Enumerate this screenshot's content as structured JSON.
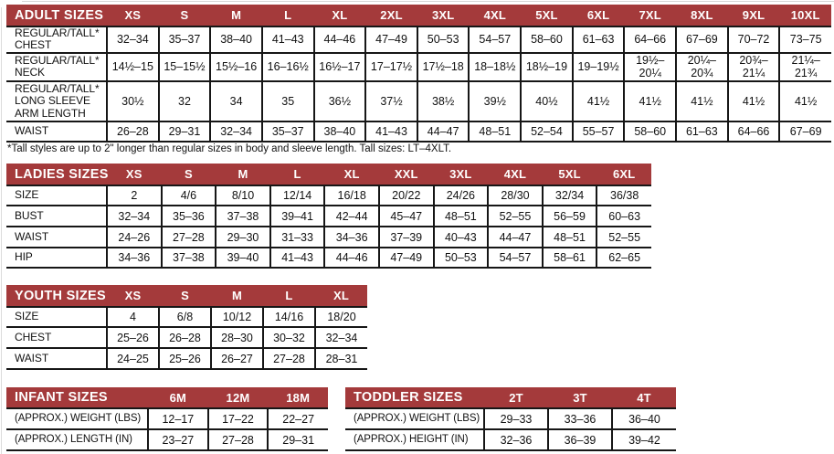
{
  "colors": {
    "header_bg": "#A43A3B",
    "header_text": "#FFFFFF",
    "border": "#161616",
    "background": "#FFFFFF"
  },
  "footnote": "*Tall styles are up to 2\" longer than regular sizes in body and sleeve length. Tall sizes: LT–4XLT.",
  "tables": {
    "adult": {
      "title": "ADULT SIZES",
      "columns": [
        "XS",
        "S",
        "M",
        "L",
        "XL",
        "2XL",
        "3XL",
        "4XL",
        "5XL",
        "6XL",
        "7XL",
        "8XL",
        "9XL",
        "10XL"
      ],
      "rows": [
        {
          "label": "REGULAR/TALL*\nCHEST",
          "values": [
            "32–34",
            "35–37",
            "38–40",
            "41–43",
            "44–46",
            "47–49",
            "50–53",
            "54–57",
            "58–60",
            "61–63",
            "64–66",
            "67–69",
            "70–72",
            "73–75"
          ]
        },
        {
          "label": "REGULAR/TALL*\nNECK",
          "values": [
            "14½–15",
            "15–15½",
            "15½–16",
            "16–16½",
            "16½–17",
            "17–17½",
            "17½–18",
            "18–18½",
            "18½–19",
            "19–19½",
            "19½–\n20¼",
            "20¼–\n20¾",
            "20¾–\n21¼",
            "21¼–\n21¾"
          ]
        },
        {
          "label": "REGULAR/TALL*\nLONG SLEEVE\nARM LENGTH",
          "values": [
            "30½",
            "32",
            "34",
            "35",
            "36½",
            "37½",
            "38½",
            "39½",
            "40½",
            "41½",
            "41½",
            "41½",
            "41½",
            "41½"
          ]
        },
        {
          "label": "WAIST",
          "values": [
            "26–28",
            "29–31",
            "32–34",
            "35–37",
            "38–40",
            "41–43",
            "44–47",
            "48–51",
            "52–54",
            "55–57",
            "58–60",
            "61–63",
            "64–66",
            "67–69"
          ]
        }
      ]
    },
    "ladies": {
      "title": "LADIES SIZES",
      "columns": [
        "XS",
        "S",
        "M",
        "L",
        "XL",
        "XXL",
        "3XL",
        "4XL",
        "5XL",
        "6XL"
      ],
      "rows": [
        {
          "label": "SIZE",
          "values": [
            "2",
            "4/6",
            "8/10",
            "12/14",
            "16/18",
            "20/22",
            "24/26",
            "28/30",
            "32/34",
            "36/38"
          ]
        },
        {
          "label": "BUST",
          "values": [
            "32–34",
            "35–36",
            "37–38",
            "39–41",
            "42–44",
            "45–47",
            "48–51",
            "52–55",
            "56–59",
            "60–63"
          ]
        },
        {
          "label": "WAIST",
          "values": [
            "24–26",
            "27–28",
            "29–30",
            "31–33",
            "34–36",
            "37–39",
            "40–43",
            "44–47",
            "48–51",
            "52–55"
          ]
        },
        {
          "label": "HIP",
          "values": [
            "34–36",
            "37–38",
            "39–40",
            "41–43",
            "44–46",
            "47–49",
            "50–53",
            "54–57",
            "58–61",
            "62–65"
          ]
        }
      ]
    },
    "youth": {
      "title": "YOUTH SIZES",
      "columns": [
        "XS",
        "S",
        "M",
        "L",
        "XL"
      ],
      "rows": [
        {
          "label": "SIZE",
          "values": [
            "4",
            "6/8",
            "10/12",
            "14/16",
            "18/20"
          ]
        },
        {
          "label": "CHEST",
          "values": [
            "25–26",
            "26–28",
            "28–30",
            "30–32",
            "32–34"
          ]
        },
        {
          "label": "WAIST",
          "values": [
            "24–25",
            "25–26",
            "26–27",
            "27–28",
            "28–31"
          ]
        }
      ]
    },
    "infant": {
      "title": "INFANT SIZES",
      "columns": [
        "6M",
        "12M",
        "18M"
      ],
      "rows": [
        {
          "label": "(APPROX.) WEIGHT (LBS)",
          "values": [
            "12–17",
            "17–22",
            "22–27"
          ]
        },
        {
          "label": "(APPROX.) LENGTH (IN)",
          "values": [
            "23–27",
            "27–28",
            "29–31"
          ]
        }
      ]
    },
    "toddler": {
      "title": "TODDLER SIZES",
      "columns": [
        "2T",
        "3T",
        "4T"
      ],
      "rows": [
        {
          "label": "(APPROX.) WEIGHT (LBS)",
          "values": [
            "29–33",
            "33–36",
            "36–40"
          ]
        },
        {
          "label": "(APPROX.) HEIGHT (IN)",
          "values": [
            "32–36",
            "36–39",
            "39–42"
          ]
        }
      ]
    }
  }
}
